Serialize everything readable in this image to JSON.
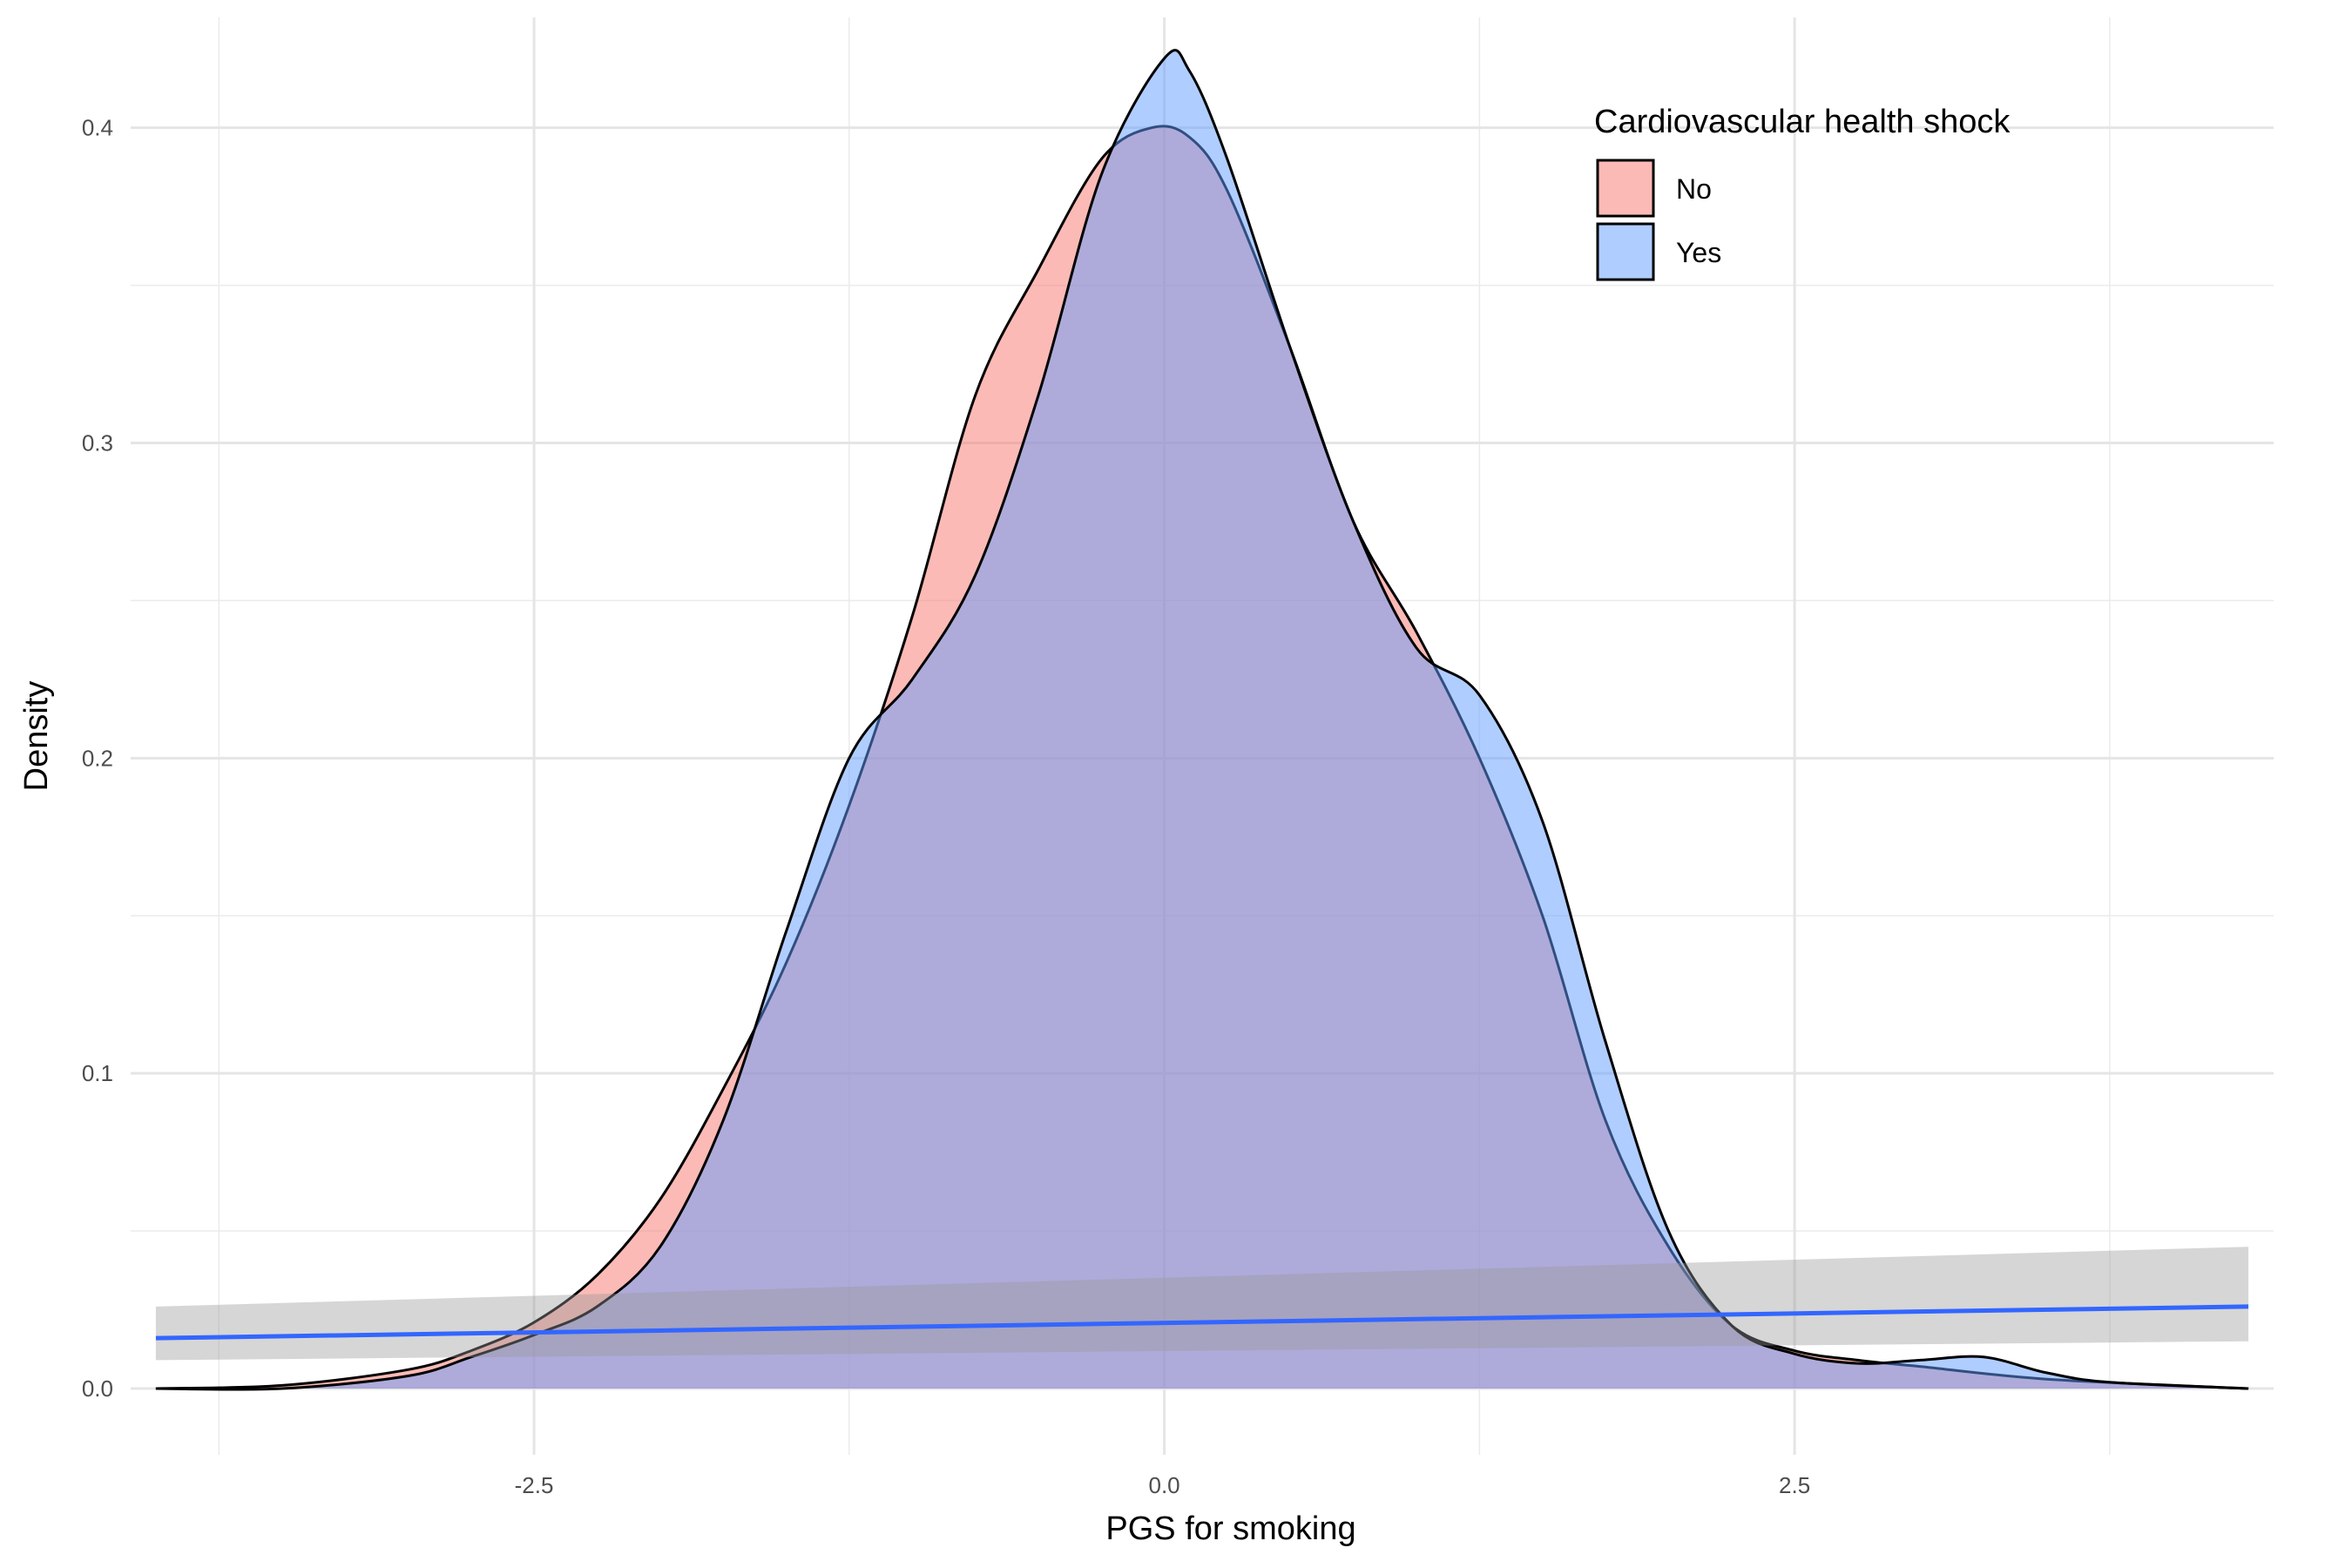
{
  "chart_data": {
    "type": "area",
    "xlabel": "PGS for smoking",
    "ylabel": "Density",
    "xlim": [
      -4.1,
      4.4
    ],
    "ylim": [
      -0.021,
      0.435
    ],
    "x_ticks": [
      -2.5,
      0.0,
      2.5
    ],
    "x_tick_labels": [
      "-2.5",
      "0.0",
      "2.5"
    ],
    "y_ticks": [
      0.0,
      0.1,
      0.2,
      0.3,
      0.4
    ],
    "y_tick_labels": [
      "0.0",
      "0.1",
      "0.2",
      "0.3",
      "0.4"
    ],
    "grid": true,
    "legend": {
      "title": "Cardiovascular health shock",
      "placement": "top-right",
      "items": [
        {
          "label": "No",
          "color": "#f8766d"
        },
        {
          "label": "Yes",
          "color": "#619cff"
        }
      ]
    },
    "series": [
      {
        "name": "No",
        "color": "#f8766d",
        "x": [
          -4.0,
          -3.5,
          -3.0,
          -2.75,
          -2.5,
          -2.25,
          -2.0,
          -1.75,
          -1.5,
          -1.25,
          -1.0,
          -0.75,
          -0.5,
          -0.25,
          -0.05,
          0.1,
          0.25,
          0.5,
          0.75,
          1.0,
          1.25,
          1.5,
          1.75,
          2.0,
          2.25,
          2.5,
          2.75,
          3.0,
          3.5,
          4.3
        ],
        "values": [
          0.0,
          0.001,
          0.006,
          0.012,
          0.021,
          0.036,
          0.06,
          0.095,
          0.135,
          0.185,
          0.245,
          0.315,
          0.355,
          0.39,
          0.4,
          0.397,
          0.38,
          0.33,
          0.275,
          0.24,
          0.2,
          0.15,
          0.085,
          0.045,
          0.02,
          0.012,
          0.009,
          0.007,
          0.003,
          0.0
        ]
      },
      {
        "name": "Yes",
        "color": "#619cff",
        "x": [
          -4.0,
          -3.5,
          -3.0,
          -2.75,
          -2.5,
          -2.25,
          -2.0,
          -1.75,
          -1.5,
          -1.25,
          -1.0,
          -0.75,
          -0.5,
          -0.25,
          0.0,
          0.1,
          0.25,
          0.5,
          0.75,
          1.0,
          1.25,
          1.5,
          1.75,
          2.0,
          2.25,
          2.5,
          2.75,
          3.0,
          3.25,
          3.5,
          3.75,
          4.3
        ],
        "values": [
          0.0,
          0.0,
          0.004,
          0.01,
          0.017,
          0.026,
          0.045,
          0.085,
          0.145,
          0.2,
          0.225,
          0.258,
          0.315,
          0.385,
          0.422,
          0.418,
          0.39,
          0.33,
          0.275,
          0.235,
          0.22,
          0.18,
          0.11,
          0.05,
          0.02,
          0.011,
          0.008,
          0.009,
          0.01,
          0.005,
          0.002,
          0.0
        ]
      }
    ],
    "trend_line": {
      "color": "#3366ff",
      "x": [
        -4.0,
        4.3
      ],
      "values": [
        0.016,
        0.026
      ],
      "band_lower": [
        0.009,
        0.015
      ],
      "band_upper": [
        0.026,
        0.045
      ]
    }
  }
}
